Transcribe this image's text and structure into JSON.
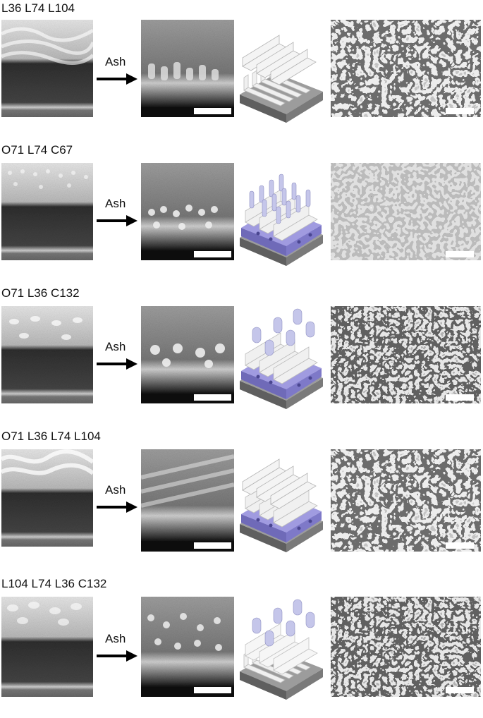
{
  "arrow_label": "Ash",
  "rows": [
    {
      "label": "L36 L74 L104",
      "model": "lines-lines"
    },
    {
      "label": "O71 L74 C67",
      "model": "blue-lines-dense-posts"
    },
    {
      "label": "O71 L36 C132",
      "model": "blue-lines-sparse-posts"
    },
    {
      "label": "O71 L36 L74 L104",
      "model": "blue-lines-lines"
    },
    {
      "label": "L104 L74 L36 C132",
      "model": "lines-posts"
    }
  ],
  "colors": {
    "accent_purple": "#8f8ad6",
    "post_purple": "#c5c6ea",
    "base_gray": "#6f6f6f"
  }
}
